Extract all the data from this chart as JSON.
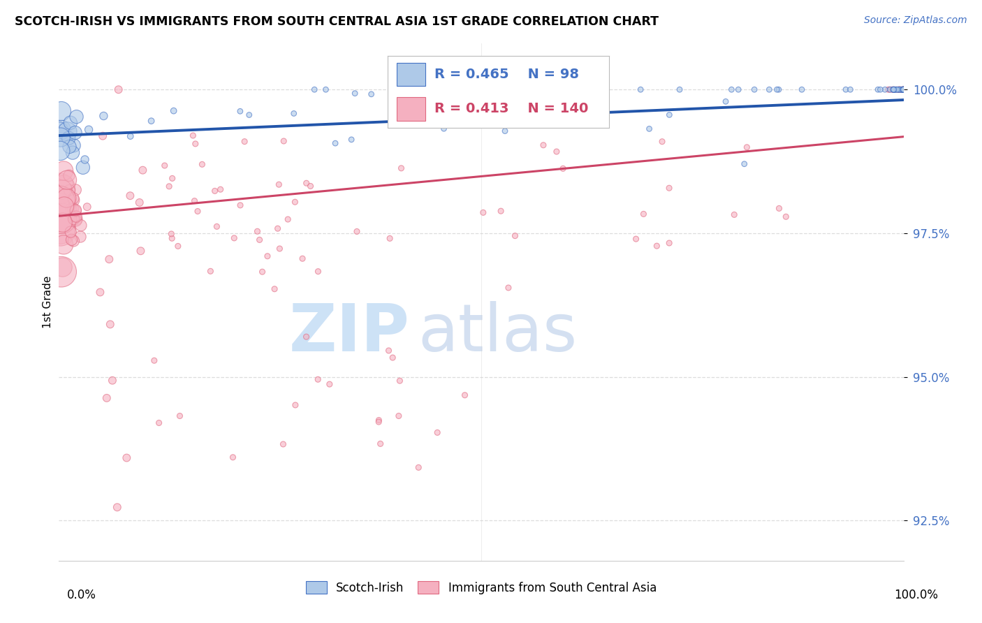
{
  "title": "SCOTCH-IRISH VS IMMIGRANTS FROM SOUTH CENTRAL ASIA 1ST GRADE CORRELATION CHART",
  "source": "Source: ZipAtlas.com",
  "ylabel": "1st Grade",
  "xlim": [
    0.0,
    100.0
  ],
  "ylim": [
    91.8,
    100.8
  ],
  "yticks": [
    92.5,
    95.0,
    97.5,
    100.0
  ],
  "ytick_labels": [
    "92.5%",
    "95.0%",
    "97.5%",
    "100.0%"
  ],
  "blue_R": 0.465,
  "blue_N": 98,
  "pink_R": 0.413,
  "pink_N": 140,
  "blue_fill": "#aec9e8",
  "pink_fill": "#f5b0c0",
  "blue_edge": "#4472c4",
  "pink_edge": "#e06880",
  "blue_line": "#2255aa",
  "pink_line": "#cc4466",
  "legend_blue_label": "Scotch-Irish",
  "legend_pink_label": "Immigrants from South Central Asia",
  "blue_trendline_y": [
    99.2,
    99.82
  ],
  "pink_trendline_y": [
    97.8,
    99.18
  ],
  "watermark_zip": "#c5ddf5",
  "watermark_atlas": "#b8cce8",
  "grid_color": "#dddddd",
  "axis_color": "#cccccc"
}
